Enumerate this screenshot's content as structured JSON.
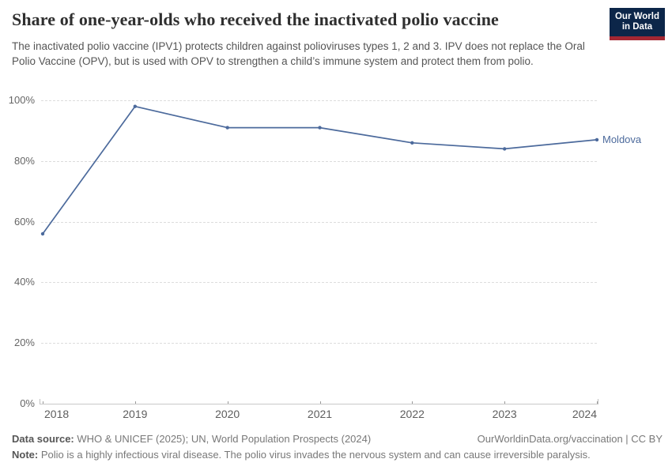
{
  "header": {
    "title": "Share of one-year-olds who received the inactivated polio vaccine",
    "subtitle": "The inactivated polio vaccine (IPV1) protects children against polioviruses types 1, 2 and 3. IPV does not replace the Oral Polio Vaccine (OPV), but is used with OPV to strengthen a child’s immune system and protect them from polio.",
    "logo": {
      "line1": "Our World",
      "line2": "in Data"
    }
  },
  "colors": {
    "line": "#4C6A9C",
    "logo_bg": "#0c2649",
    "logo_stripe": "#a32733"
  },
  "chart_data": {
    "type": "line",
    "title": "Share of one-year-olds who received the inactivated polio vaccine",
    "x": [
      2018,
      2019,
      2020,
      2021,
      2022,
      2023,
      2024
    ],
    "series": [
      {
        "name": "Moldova",
        "color": "#4C6A9C",
        "values": [
          56,
          98,
          91,
          91,
          86,
          84,
          87
        ]
      }
    ],
    "ylim": [
      0,
      100
    ],
    "yticks": [
      0,
      20,
      40,
      60,
      80,
      100
    ],
    "ytick_suffix": "%",
    "grid": "horizontal-dashed",
    "legend_position": "end-of-line"
  },
  "footer": {
    "datasource_label": "Data source:",
    "datasource_text": " WHO & UNICEF (2025); UN, World Population Prospects (2024)",
    "license": "OurWorldinData.org/vaccination | CC BY",
    "note_label": "Note:",
    "note_text": " Polio is a highly infectious viral disease. The polio virus invades the nervous system and can cause irreversible paralysis."
  }
}
